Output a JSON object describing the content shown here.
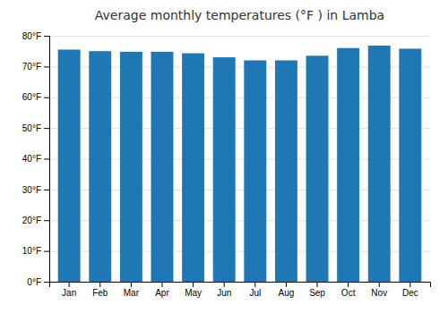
{
  "chart_data": {
    "type": "bar",
    "title": "Average monthly temperatures (°F ) in Lamba",
    "categories": [
      "Jan",
      "Feb",
      "Mar",
      "Apr",
      "May",
      "Jun",
      "Jul",
      "Aug",
      "Sep",
      "Oct",
      "Nov",
      "Dec"
    ],
    "values": [
      75.5,
      75.0,
      74.8,
      74.8,
      74.3,
      73.0,
      72.0,
      72.0,
      73.5,
      76.0,
      76.8,
      75.8
    ],
    "ylim": [
      0,
      80
    ],
    "yticks": [
      {
        "value": 0,
        "label": "0°F"
      },
      {
        "value": 10,
        "label": "10°F"
      },
      {
        "value": 20,
        "label": "20°F"
      },
      {
        "value": 30,
        "label": "30°F"
      },
      {
        "value": 40,
        "label": "40°F"
      },
      {
        "value": 50,
        "label": "50°F"
      },
      {
        "value": 60,
        "label": "60°F"
      },
      {
        "value": 70,
        "label": "70°F"
      },
      {
        "value": 80,
        "label": "80°F"
      }
    ],
    "grid": true
  }
}
